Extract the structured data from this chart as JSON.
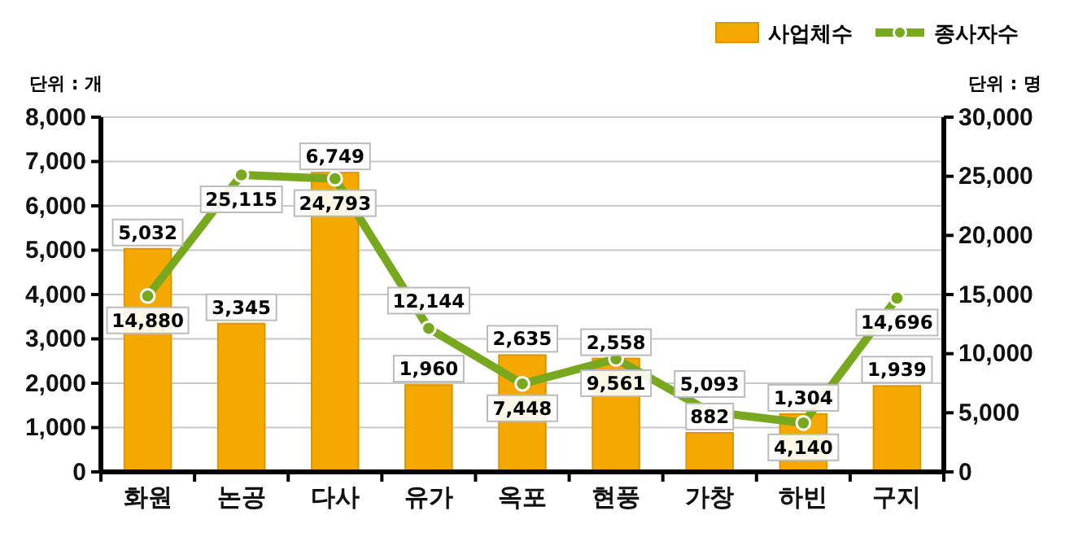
{
  "chart_data": {
    "type": "bar",
    "categories": [
      "화원",
      "논공",
      "다사",
      "유가",
      "옥포",
      "현풍",
      "가창",
      "하빈",
      "구지"
    ],
    "series": [
      {
        "name": "사업체수",
        "color": "#f5a800",
        "values": [
          5032,
          3345,
          6749,
          1960,
          2635,
          2558,
          882,
          1304,
          1939
        ],
        "value_labels": [
          "5,032",
          "3,345",
          "6,749",
          "1,960",
          "2,635",
          "2,558",
          "882",
          "1,304",
          "1,939"
        ]
      },
      {
        "name": "종사자수",
        "type": "line",
        "axis": "y2",
        "color": "#78a81e",
        "values": [
          14880,
          25115,
          24793,
          12144,
          7448,
          9561,
          5093,
          4140,
          14696
        ],
        "value_labels": [
          "14,880",
          "25,115",
          "24,793",
          "12,144",
          "7,448",
          "9,561",
          "5,093",
          "4,140",
          "14,696"
        ]
      }
    ],
    "ylabel": "단위 : 개",
    "y2label": "단위 : 명",
    "ylim": [
      0,
      8000
    ],
    "yticks": [
      {
        "value": 0,
        "label": "0"
      },
      {
        "value": 1000,
        "label": "1,000"
      },
      {
        "value": 2000,
        "label": "2,000"
      },
      {
        "value": 3000,
        "label": "3,000"
      },
      {
        "value": 4000,
        "label": "4,000"
      },
      {
        "value": 5000,
        "label": "5,000"
      },
      {
        "value": 6000,
        "label": "6,000"
      },
      {
        "value": 7000,
        "label": "7,000"
      },
      {
        "value": 8000,
        "label": "8,000"
      }
    ],
    "y2lim": [
      0,
      30000
    ],
    "y2ticks": [
      {
        "value": 0,
        "label": "0"
      },
      {
        "value": 5000,
        "label": "5,000"
      },
      {
        "value": 10000,
        "label": "10,000"
      },
      {
        "value": 15000,
        "label": "15,000"
      },
      {
        "value": 20000,
        "label": "20,000"
      },
      {
        "value": 25000,
        "label": "25,000"
      },
      {
        "value": 30000,
        "label": "30,000"
      }
    ],
    "grid": "y",
    "legend": "top right",
    "marker": "circle",
    "line_style": "solid"
  }
}
